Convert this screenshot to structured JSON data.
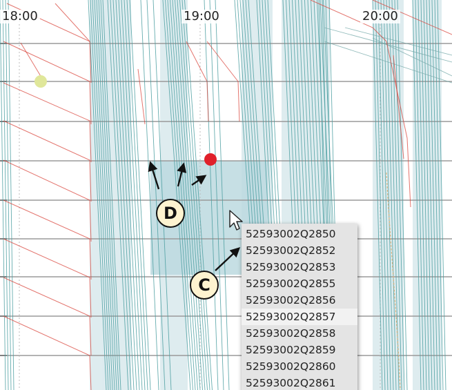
{
  "axis": {
    "time_labels": [
      "18:00",
      "19:00",
      "20:00"
    ]
  },
  "callouts": {
    "c": "C",
    "d": "D"
  },
  "tooltip": {
    "items": [
      "52593002Q2850",
      "52593002Q2852",
      "52593002Q2853",
      "52593002Q2855",
      "52593002Q2856",
      "52593002Q2857",
      "52593002Q2858",
      "52593002Q2859",
      "52593002Q2860",
      "52593002Q2861"
    ]
  },
  "colors": {
    "teal_line": "#4a9ea0",
    "red_line": "#d9453c",
    "band": "#dcebee",
    "highlight": "#bcd9df",
    "red_marker": "#e0202a",
    "yellow_marker": "#e0e79a"
  }
}
